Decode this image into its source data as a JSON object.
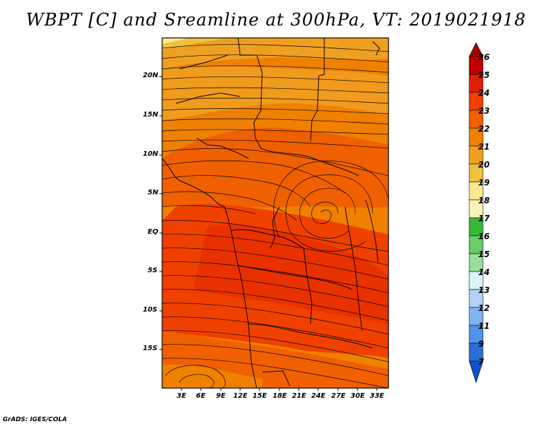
{
  "title": "WBPT [C] and Sreamline at 300hPa, VT: 2019021918",
  "footer": "GrADS: IGES/COLA",
  "map": {
    "lat_labels": [
      "20N",
      "15N",
      "10N",
      "5N",
      "EQ",
      "5S",
      "10S",
      "15S"
    ],
    "lon_labels": [
      "3E",
      "6E",
      "9E",
      "12E",
      "15E",
      "18E",
      "21E",
      "24E",
      "27E",
      "30E",
      "33E"
    ]
  },
  "colorbar": {
    "labels": [
      "26",
      "25",
      "24",
      "23",
      "22",
      "21",
      "20",
      "19",
      "18",
      "17",
      "16",
      "15",
      "14",
      "13",
      "12",
      "11",
      "9",
      "7"
    ],
    "colors": [
      "#a00000",
      "#c00000",
      "#e02000",
      "#f04000",
      "#f06000",
      "#f08000",
      "#f0a020",
      "#f0c040",
      "#f8e890",
      "#38b838",
      "#68cc68",
      "#98de98",
      "#c8f0c8",
      "#d8f4f8",
      "#b0d4f8",
      "#80b4f0",
      "#5094e8",
      "#2870d8",
      "#1050c8"
    ]
  },
  "colors": {
    "field_orange": "#f08000",
    "field_dark": "#f06000",
    "field_red": "#f04000",
    "field_light": "#f0a020",
    "field_yellow": "#f0c040"
  }
}
